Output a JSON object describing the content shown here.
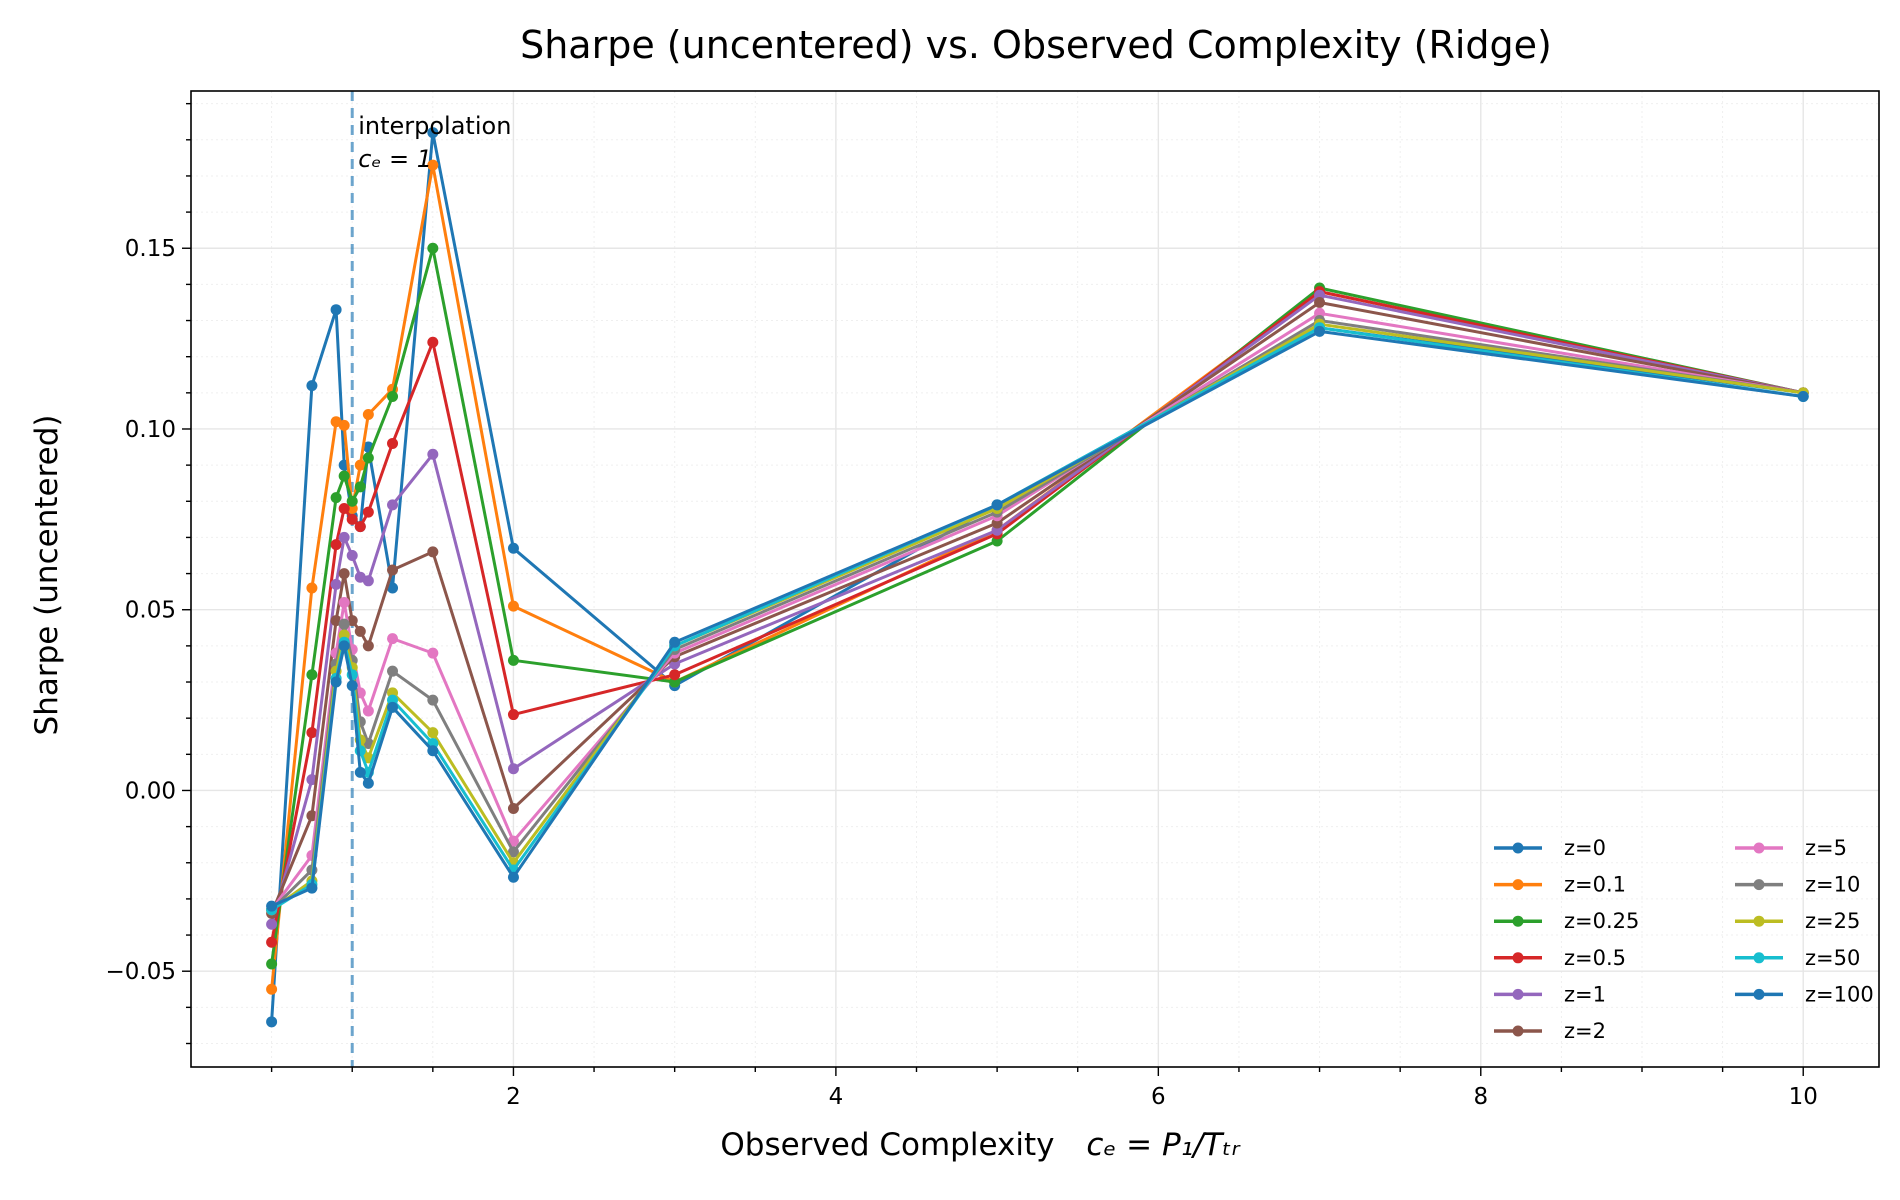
{
  "chart_data": {
    "type": "line",
    "title": "Sharpe (uncentered) vs. Observed Complexity (Ridge)",
    "xlabel_main": "Observed Complexity",
    "xlabel_formula": "cₑ = P₁/Tₜᵣ",
    "ylabel": "Sharpe (uncentered)",
    "xlim": [
      0.0,
      10.47
    ],
    "ylim": [
      -0.0765,
      0.1935
    ],
    "x_major_ticks": [
      2,
      4,
      6,
      8,
      10
    ],
    "x_tick_labels": [
      "2",
      "4",
      "6",
      "8",
      "10"
    ],
    "y_major_ticks": [
      -0.05,
      0.0,
      0.05,
      0.1,
      0.15
    ],
    "y_tick_labels": [
      "−0.05",
      "0.00",
      "0.05",
      "0.10",
      "0.15"
    ],
    "grid": true,
    "legend_position": "lower-right",
    "legend_columns": 2,
    "annotation": {
      "x": 1.0,
      "line1": "interpolation",
      "line2": "cₑ = 1"
    },
    "x": [
      0.5,
      0.75,
      0.9,
      0.95,
      1.0,
      1.05,
      1.1,
      1.25,
      1.5,
      2,
      3,
      5,
      7,
      10
    ],
    "series": [
      {
        "name": "z=0",
        "color": "#1f77b4",
        "values": [
          -0.064,
          0.112,
          0.133,
          0.09,
          0.076,
          0.073,
          0.095,
          0.056,
          0.182,
          0.067,
          0.029,
          0.079,
          0.128,
          0.11
        ]
      },
      {
        "name": "z=0.1",
        "color": "#ff7f0e",
        "values": [
          -0.055,
          0.056,
          0.102,
          0.101,
          0.078,
          0.09,
          0.104,
          0.111,
          0.173,
          0.051,
          0.03,
          0.072,
          0.138,
          0.11
        ]
      },
      {
        "name": "z=0.25",
        "color": "#2ca02c",
        "values": [
          -0.048,
          0.032,
          0.081,
          0.087,
          0.08,
          0.084,
          0.092,
          0.109,
          0.15,
          0.036,
          0.03,
          0.069,
          0.139,
          0.11
        ]
      },
      {
        "name": "z=0.5",
        "color": "#d62728",
        "values": [
          -0.042,
          0.016,
          0.068,
          0.078,
          0.075,
          0.073,
          0.077,
          0.096,
          0.124,
          0.021,
          0.032,
          0.071,
          0.138,
          0.11
        ]
      },
      {
        "name": "z=1",
        "color": "#9467bd",
        "values": [
          -0.037,
          0.003,
          0.057,
          0.07,
          0.065,
          0.059,
          0.058,
          0.079,
          0.093,
          0.006,
          0.035,
          0.072,
          0.137,
          0.11
        ]
      },
      {
        "name": "z=2",
        "color": "#8c564b",
        "values": [
          -0.034,
          -0.007,
          0.047,
          0.06,
          0.047,
          0.044,
          0.04,
          0.061,
          0.066,
          -0.005,
          0.037,
          0.074,
          0.135,
          0.11
        ]
      },
      {
        "name": "z=5",
        "color": "#e377c2",
        "values": [
          -0.033,
          -0.018,
          0.038,
          0.052,
          0.039,
          0.027,
          0.022,
          0.042,
          0.038,
          -0.014,
          0.038,
          0.076,
          0.132,
          0.11
        ]
      },
      {
        "name": "z=10",
        "color": "#7f7f7f",
        "values": [
          -0.033,
          -0.022,
          0.035,
          0.046,
          0.036,
          0.019,
          0.013,
          0.033,
          0.025,
          -0.017,
          0.039,
          0.077,
          0.13,
          0.11
        ]
      },
      {
        "name": "z=25",
        "color": "#bcbd22",
        "values": [
          -0.033,
          -0.025,
          0.033,
          0.043,
          0.034,
          0.014,
          0.009,
          0.027,
          0.016,
          -0.02,
          0.04,
          0.078,
          0.129,
          0.11
        ]
      },
      {
        "name": "z=50",
        "color": "#17becf",
        "values": [
          -0.033,
          -0.026,
          0.031,
          0.041,
          0.032,
          0.011,
          0.005,
          0.025,
          0.013,
          -0.022,
          0.04,
          0.079,
          0.128,
          0.109
        ]
      },
      {
        "name": "z=100",
        "color": "#1f77b4",
        "values": [
          -0.032,
          -0.027,
          0.03,
          0.04,
          0.029,
          0.005,
          0.002,
          0.023,
          0.011,
          -0.024,
          0.041,
          0.079,
          0.127,
          0.109
        ]
      }
    ]
  }
}
